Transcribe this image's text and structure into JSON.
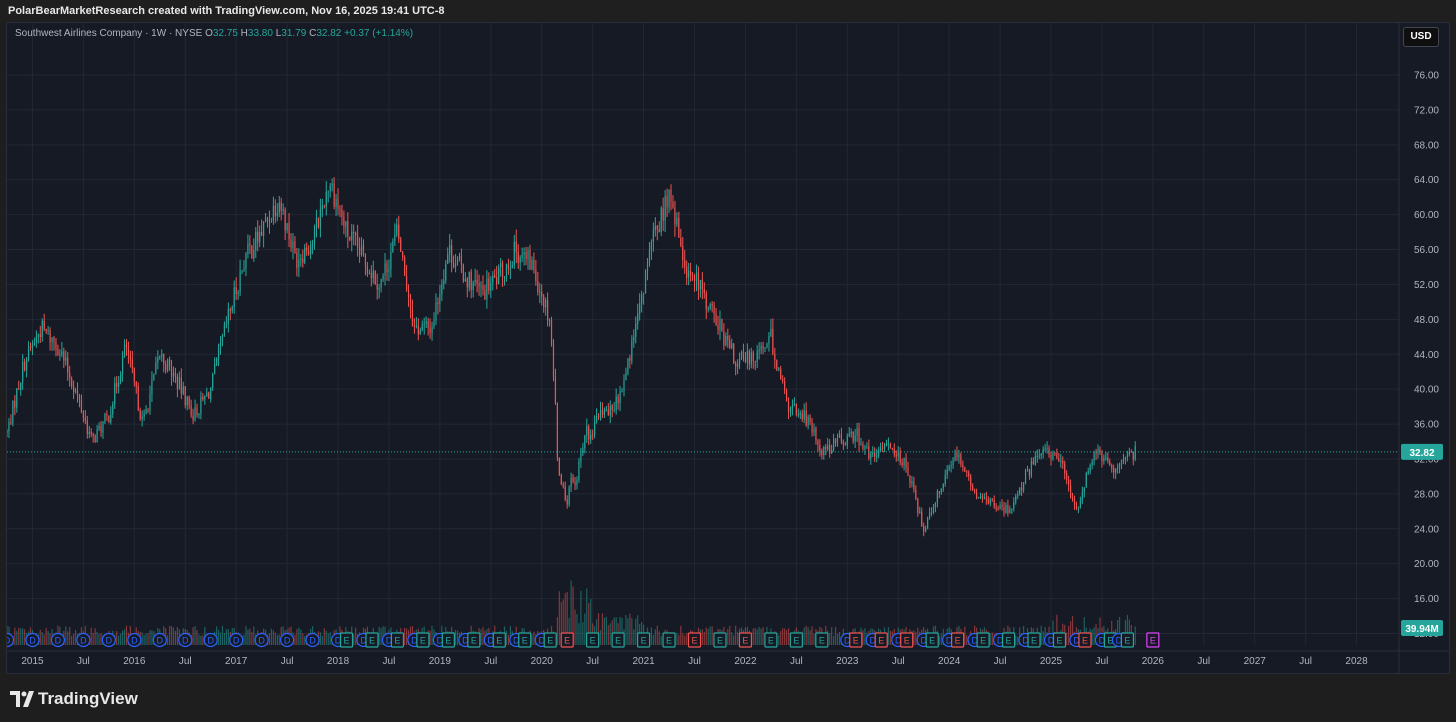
{
  "header": {
    "attribution": "PolarBearMarketResearch created with TradingView.com, Nov 16, 2025 19:41 UTC-8"
  },
  "legend": {
    "symbol": "Southwest Airlines Company · 1W · NYSE",
    "o_label": "O",
    "o_value": "32.75",
    "h_label": "H",
    "h_value": "33.80",
    "l_label": "L",
    "l_value": "31.79",
    "c_label": "C",
    "c_value": "32.82",
    "change": "+0.37 (+1.14%)"
  },
  "currency": "USD",
  "footer": {
    "brand": "TradingView"
  },
  "colors": {
    "up": "#26a69a",
    "down": "#ef5350",
    "background": "#161a25",
    "grid": "#232734",
    "axis_text": "#b2b5be",
    "dividend": "#2962ff",
    "earnings_up": "#26a69a",
    "earnings_down": "#ef5350",
    "earnings_upcoming": "#e040fb"
  },
  "chart_data": {
    "type": "candlestick",
    "timeframe": "1W",
    "y_axis": {
      "labels": [
        "76.00",
        "72.00",
        "68.00",
        "64.00",
        "60.00",
        "56.00",
        "52.00",
        "48.00",
        "44.00",
        "40.00",
        "36.00",
        "32.00",
        "28.00",
        "24.00",
        "20.00",
        "16.00",
        "12.00"
      ],
      "range": [
        10.5,
        80
      ]
    },
    "x_axis": {
      "labels": [
        "2015",
        "Jul",
        "2016",
        "Jul",
        "2017",
        "Jul",
        "2018",
        "Jul",
        "2019",
        "Jul",
        "2020",
        "Jul",
        "2021",
        "Jul",
        "2022",
        "Jul",
        "2023",
        "Jul",
        "2024",
        "Jul",
        "2025",
        "Jul",
        "2026",
        "Jul",
        "2027",
        "Jul",
        "2028"
      ],
      "range": [
        "2014-10",
        "2028-06"
      ]
    },
    "last_price": "32.82",
    "last_volume": "39.94M",
    "price_path": [
      [
        "2014-10",
        35
      ],
      [
        "2014-12",
        43
      ],
      [
        "2015-02",
        47
      ],
      [
        "2015-04",
        45
      ],
      [
        "2015-06",
        40
      ],
      [
        "2015-08",
        34
      ],
      [
        "2015-10",
        37
      ],
      [
        "2015-12",
        45
      ],
      [
        "2016-02",
        36
      ],
      [
        "2016-04",
        44
      ],
      [
        "2016-06",
        41
      ],
      [
        "2016-08",
        37
      ],
      [
        "2016-10",
        40
      ],
      [
        "2016-12",
        48
      ],
      [
        "2017-02",
        55
      ],
      [
        "2017-04",
        58
      ],
      [
        "2017-06",
        62
      ],
      [
        "2017-08",
        55
      ],
      [
        "2017-10",
        57
      ],
      [
        "2017-12",
        64
      ],
      [
        "2018-02",
        58
      ],
      [
        "2018-04",
        55
      ],
      [
        "2018-06",
        52
      ],
      [
        "2018-08",
        58
      ],
      [
        "2018-10",
        47
      ],
      [
        "2018-12",
        47
      ],
      [
        "2019-02",
        56
      ],
      [
        "2019-04",
        53
      ],
      [
        "2019-06",
        51
      ],
      [
        "2019-08",
        53
      ],
      [
        "2019-10",
        56
      ],
      [
        "2019-12",
        54
      ],
      [
        "2020-02",
        48
      ],
      [
        "2020-03",
        31
      ],
      [
        "2020-04",
        27
      ],
      [
        "2020-06",
        34
      ],
      [
        "2020-08",
        37
      ],
      [
        "2020-10",
        39
      ],
      [
        "2020-12",
        46
      ],
      [
        "2021-02",
        57
      ],
      [
        "2021-04",
        62
      ],
      [
        "2021-06",
        54
      ],
      [
        "2021-08",
        51
      ],
      [
        "2021-10",
        47
      ],
      [
        "2021-12",
        43
      ],
      [
        "2022-02",
        44
      ],
      [
        "2022-04",
        46
      ],
      [
        "2022-06",
        38
      ],
      [
        "2022-08",
        37
      ],
      [
        "2022-10",
        33
      ],
      [
        "2022-12",
        34
      ],
      [
        "2023-02",
        35
      ],
      [
        "2023-04",
        32
      ],
      [
        "2023-06",
        34
      ],
      [
        "2023-08",
        31
      ],
      [
        "2023-10",
        24
      ],
      [
        "2023-12",
        29
      ],
      [
        "2024-02",
        33
      ],
      [
        "2024-04",
        28
      ],
      [
        "2024-06",
        27
      ],
      [
        "2024-08",
        26
      ],
      [
        "2024-10",
        30
      ],
      [
        "2024-12",
        33
      ],
      [
        "2025-02",
        32
      ],
      [
        "2025-04",
        26
      ],
      [
        "2025-06",
        33
      ],
      [
        "2025-08",
        31
      ],
      [
        "2025-10",
        32
      ],
      [
        "2025-11",
        32.82
      ]
    ],
    "volume_range": [
      0,
      65
    ],
    "events": [
      {
        "date": "2014-10",
        "type": "D"
      },
      {
        "date": "2015-01",
        "type": "D"
      },
      {
        "date": "2015-04",
        "type": "D"
      },
      {
        "date": "2015-07",
        "type": "D"
      },
      {
        "date": "2015-10",
        "type": "D"
      },
      {
        "date": "2016-01",
        "type": "D"
      },
      {
        "date": "2016-04",
        "type": "D"
      },
      {
        "date": "2016-07",
        "type": "D"
      },
      {
        "date": "2016-10",
        "type": "D"
      },
      {
        "date": "2017-01",
        "type": "D"
      },
      {
        "date": "2017-04",
        "type": "D"
      },
      {
        "date": "2017-07",
        "type": "D"
      },
      {
        "date": "2017-10",
        "type": "D"
      },
      {
        "date": "2018-01",
        "type": "D"
      },
      {
        "date": "2018-02",
        "type": "E"
      },
      {
        "date": "2018-04",
        "type": "D"
      },
      {
        "date": "2018-05",
        "type": "E"
      },
      {
        "date": "2018-07",
        "type": "D"
      },
      {
        "date": "2018-08",
        "type": "E"
      },
      {
        "date": "2018-10",
        "type": "D"
      },
      {
        "date": "2018-11",
        "type": "E"
      },
      {
        "date": "2019-01",
        "type": "D"
      },
      {
        "date": "2019-02",
        "type": "E"
      },
      {
        "date": "2019-04",
        "type": "D"
      },
      {
        "date": "2019-05",
        "type": "E"
      },
      {
        "date": "2019-07",
        "type": "D"
      },
      {
        "date": "2019-08",
        "type": "E"
      },
      {
        "date": "2019-10",
        "type": "D"
      },
      {
        "date": "2019-11",
        "type": "E"
      },
      {
        "date": "2020-01",
        "type": "D"
      },
      {
        "date": "2020-02",
        "type": "E"
      },
      {
        "date": "2020-04",
        "type": "E-down"
      },
      {
        "date": "2020-07",
        "type": "E"
      },
      {
        "date": "2020-10",
        "type": "E"
      },
      {
        "date": "2021-01",
        "type": "E"
      },
      {
        "date": "2021-04",
        "type": "E"
      },
      {
        "date": "2021-07",
        "type": "E-down"
      },
      {
        "date": "2021-10",
        "type": "E"
      },
      {
        "date": "2022-01",
        "type": "E-down"
      },
      {
        "date": "2022-04",
        "type": "E"
      },
      {
        "date": "2022-07",
        "type": "E"
      },
      {
        "date": "2022-10",
        "type": "E"
      },
      {
        "date": "2023-01",
        "type": "D"
      },
      {
        "date": "2023-02",
        "type": "E-down"
      },
      {
        "date": "2023-04",
        "type": "D"
      },
      {
        "date": "2023-05",
        "type": "E-down"
      },
      {
        "date": "2023-07",
        "type": "D"
      },
      {
        "date": "2023-08",
        "type": "E-down"
      },
      {
        "date": "2023-10",
        "type": "D"
      },
      {
        "date": "2023-11",
        "type": "E"
      },
      {
        "date": "2024-01",
        "type": "D"
      },
      {
        "date": "2024-02",
        "type": "E-down"
      },
      {
        "date": "2024-04",
        "type": "D"
      },
      {
        "date": "2024-05",
        "type": "E"
      },
      {
        "date": "2024-07",
        "type": "D"
      },
      {
        "date": "2024-08",
        "type": "E"
      },
      {
        "date": "2024-10",
        "type": "D"
      },
      {
        "date": "2024-11",
        "type": "E"
      },
      {
        "date": "2025-01",
        "type": "D"
      },
      {
        "date": "2025-02",
        "type": "E"
      },
      {
        "date": "2025-04",
        "type": "D"
      },
      {
        "date": "2025-05",
        "type": "E-down"
      },
      {
        "date": "2025-07",
        "type": "D"
      },
      {
        "date": "2025-08",
        "type": "E"
      },
      {
        "date": "2025-09",
        "type": "D"
      },
      {
        "date": "2025-10",
        "type": "E"
      },
      {
        "date": "2026-01",
        "type": "E-upcoming"
      }
    ]
  }
}
